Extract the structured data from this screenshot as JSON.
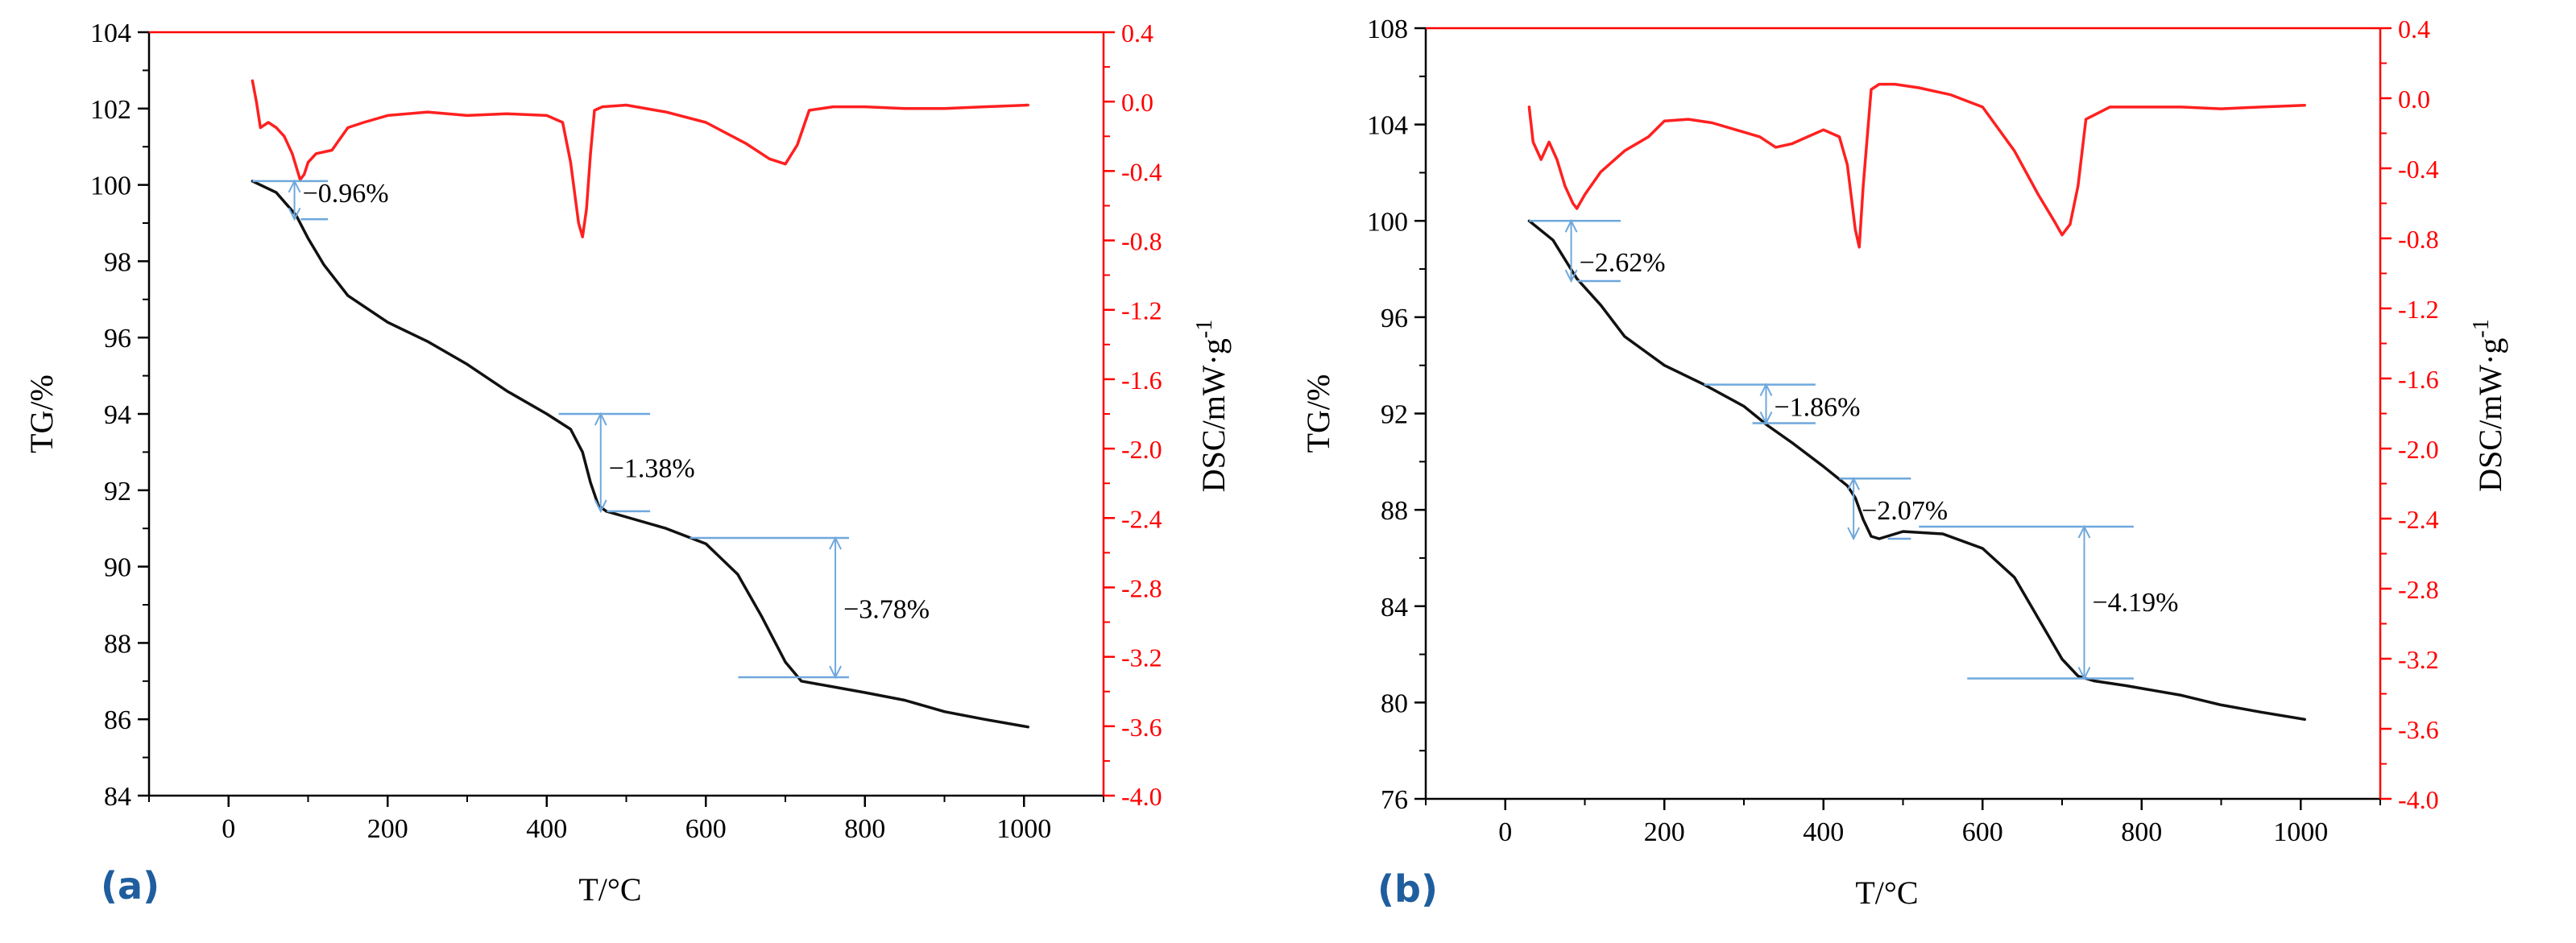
{
  "colors": {
    "tg": "#111111",
    "dsc": "#ff2020",
    "annot": "#6fa8dc",
    "panel_label": "#1f5e9e",
    "axis_left": "#000000",
    "axis_right": "#ff0000"
  },
  "chart_data": [
    {
      "type": "line",
      "panel": "(a)",
      "xlabel": "T/°C",
      "ylabel": "TG/%",
      "y2label": "DSC/mW·g",
      "y2label_sup": "-1",
      "xlim": [
        -100,
        1100
      ],
      "xticks": [
        0,
        200,
        400,
        600,
        800,
        1000
      ],
      "ylim": [
        84,
        104
      ],
      "yticks": [
        84,
        86,
        88,
        90,
        92,
        94,
        96,
        98,
        100,
        102,
        104
      ],
      "y2lim": [
        -4.0,
        0.4
      ],
      "y2ticks": [
        0.4,
        0.0,
        -0.4,
        -0.8,
        -1.2,
        -1.6,
        -2.0,
        -2.4,
        -2.8,
        -3.2,
        -3.6,
        -4.0
      ],
      "series": [
        {
          "name": "TG",
          "axis": "left",
          "x": [
            30,
            60,
            85,
            100,
            120,
            150,
            200,
            250,
            300,
            350,
            400,
            430,
            445,
            455,
            465,
            475,
            500,
            550,
            600,
            640,
            670,
            700,
            720,
            760,
            800,
            850,
            900,
            950,
            1005
          ],
          "y": [
            100.1,
            99.8,
            99.2,
            98.6,
            97.9,
            97.1,
            96.4,
            95.9,
            95.3,
            94.6,
            94.0,
            93.6,
            93.0,
            92.2,
            91.6,
            91.45,
            91.3,
            91.0,
            90.6,
            89.8,
            88.7,
            87.5,
            87.0,
            86.85,
            86.7,
            86.5,
            86.2,
            86.0,
            85.8
          ]
        },
        {
          "name": "DSC",
          "axis": "right",
          "x": [
            30,
            35,
            40,
            50,
            60,
            70,
            80,
            90,
            95,
            100,
            110,
            130,
            150,
            170,
            200,
            250,
            300,
            350,
            400,
            420,
            430,
            440,
            445,
            450,
            455,
            460,
            470,
            500,
            550,
            600,
            650,
            680,
            700,
            715,
            730,
            760,
            800,
            850,
            900,
            950,
            1005
          ],
          "y": [
            0.12,
            0.0,
            -0.15,
            -0.12,
            -0.15,
            -0.2,
            -0.3,
            -0.45,
            -0.42,
            -0.35,
            -0.3,
            -0.28,
            -0.15,
            -0.12,
            -0.08,
            -0.06,
            -0.08,
            -0.07,
            -0.08,
            -0.12,
            -0.35,
            -0.7,
            -0.78,
            -0.62,
            -0.3,
            -0.05,
            -0.03,
            -0.02,
            -0.06,
            -0.12,
            -0.24,
            -0.33,
            -0.36,
            -0.25,
            -0.05,
            -0.03,
            -0.03,
            -0.04,
            -0.04,
            -0.03,
            -0.02
          ]
        }
      ],
      "annotations": [
        {
          "text": "−0.96%",
          "x_data": 95,
          "y_data": 99.8,
          "x1": 30,
          "x2": 125,
          "y_top": 100.1,
          "y_bottom": 99.1
        },
        {
          "text": "−1.38%",
          "x_data": 480,
          "y_data": 92.6,
          "x1": 415,
          "x2": 530,
          "y_top": 94.0,
          "y_bottom": 91.45
        },
        {
          "text": "−3.78%",
          "x_data": 775,
          "y_data": 88.9,
          "x1": 580,
          "x2": 780,
          "y_top": 90.75,
          "y_bottom": 87.1
        }
      ]
    },
    {
      "type": "line",
      "panel": "(b)",
      "xlabel": "T/°C",
      "ylabel": "TG/%",
      "y2label": "DSC/mW·g",
      "y2label_sup": "-1",
      "xlim": [
        -100,
        1100
      ],
      "xticks": [
        0,
        200,
        400,
        600,
        800,
        1000
      ],
      "ylim": [
        76,
        108
      ],
      "yticks": [
        76,
        80,
        84,
        88,
        92,
        96,
        100,
        104,
        108
      ],
      "y2lim": [
        -4.0,
        0.4
      ],
      "y2ticks": [
        0.4,
        0.0,
        -0.4,
        -0.8,
        -1.2,
        -1.6,
        -2.0,
        -2.4,
        -2.8,
        -3.2,
        -3.6,
        -4.0
      ],
      "series": [
        {
          "name": "TG",
          "axis": "left",
          "x": [
            30,
            60,
            90,
            120,
            150,
            200,
            250,
            300,
            330,
            360,
            400,
            430,
            440,
            450,
            460,
            470,
            480,
            500,
            550,
            600,
            640,
            670,
            700,
            720,
            740,
            780,
            850,
            900,
            950,
            1005
          ],
          "y": [
            100.0,
            99.2,
            97.6,
            96.5,
            95.2,
            94.0,
            93.2,
            92.3,
            91.5,
            90.8,
            89.8,
            89.0,
            88.5,
            87.6,
            86.9,
            86.8,
            86.9,
            87.1,
            87.0,
            86.4,
            85.2,
            83.5,
            81.8,
            81.1,
            80.9,
            80.7,
            80.3,
            79.9,
            79.6,
            79.3
          ]
        },
        {
          "name": "DSC",
          "axis": "right",
          "x": [
            30,
            35,
            45,
            55,
            65,
            75,
            85,
            90,
            100,
            120,
            150,
            180,
            200,
            230,
            260,
            290,
            320,
            340,
            360,
            380,
            400,
            420,
            430,
            440,
            445,
            450,
            460,
            470,
            490,
            520,
            560,
            600,
            640,
            670,
            690,
            700,
            710,
            720,
            730,
            760,
            800,
            850,
            900,
            950,
            1005
          ],
          "y": [
            -0.05,
            -0.25,
            -0.35,
            -0.25,
            -0.35,
            -0.5,
            -0.6,
            -0.63,
            -0.55,
            -0.42,
            -0.3,
            -0.22,
            -0.13,
            -0.12,
            -0.14,
            -0.18,
            -0.22,
            -0.28,
            -0.26,
            -0.22,
            -0.18,
            -0.22,
            -0.38,
            -0.75,
            -0.85,
            -0.5,
            0.05,
            0.08,
            0.08,
            0.06,
            0.02,
            -0.05,
            -0.3,
            -0.55,
            -0.7,
            -0.78,
            -0.72,
            -0.5,
            -0.12,
            -0.05,
            -0.05,
            -0.05,
            -0.06,
            -0.05,
            -0.04
          ]
        }
      ],
      "annotations": [
        {
          "text": "−2.62%",
          "x_data": 95,
          "y_data": 98.3,
          "x1": 30,
          "x2": 145,
          "y_top": 100.0,
          "y_bottom": 97.5
        },
        {
          "text": "−1.86%",
          "x_data": 340,
          "y_data": 92.3,
          "x1": 250,
          "x2": 390,
          "y_top": 93.2,
          "y_bottom": 91.6
        },
        {
          "text": "−2.07%",
          "x_data": 450,
          "y_data": 88.0,
          "x1": 420,
          "x2": 510,
          "y_top": 89.3,
          "y_bottom": 86.8
        },
        {
          "text": "−4.19%",
          "x_data": 740,
          "y_data": 84.2,
          "x1": 520,
          "x2": 790,
          "y_top": 87.3,
          "y_bottom": 81.0
        }
      ]
    }
  ]
}
